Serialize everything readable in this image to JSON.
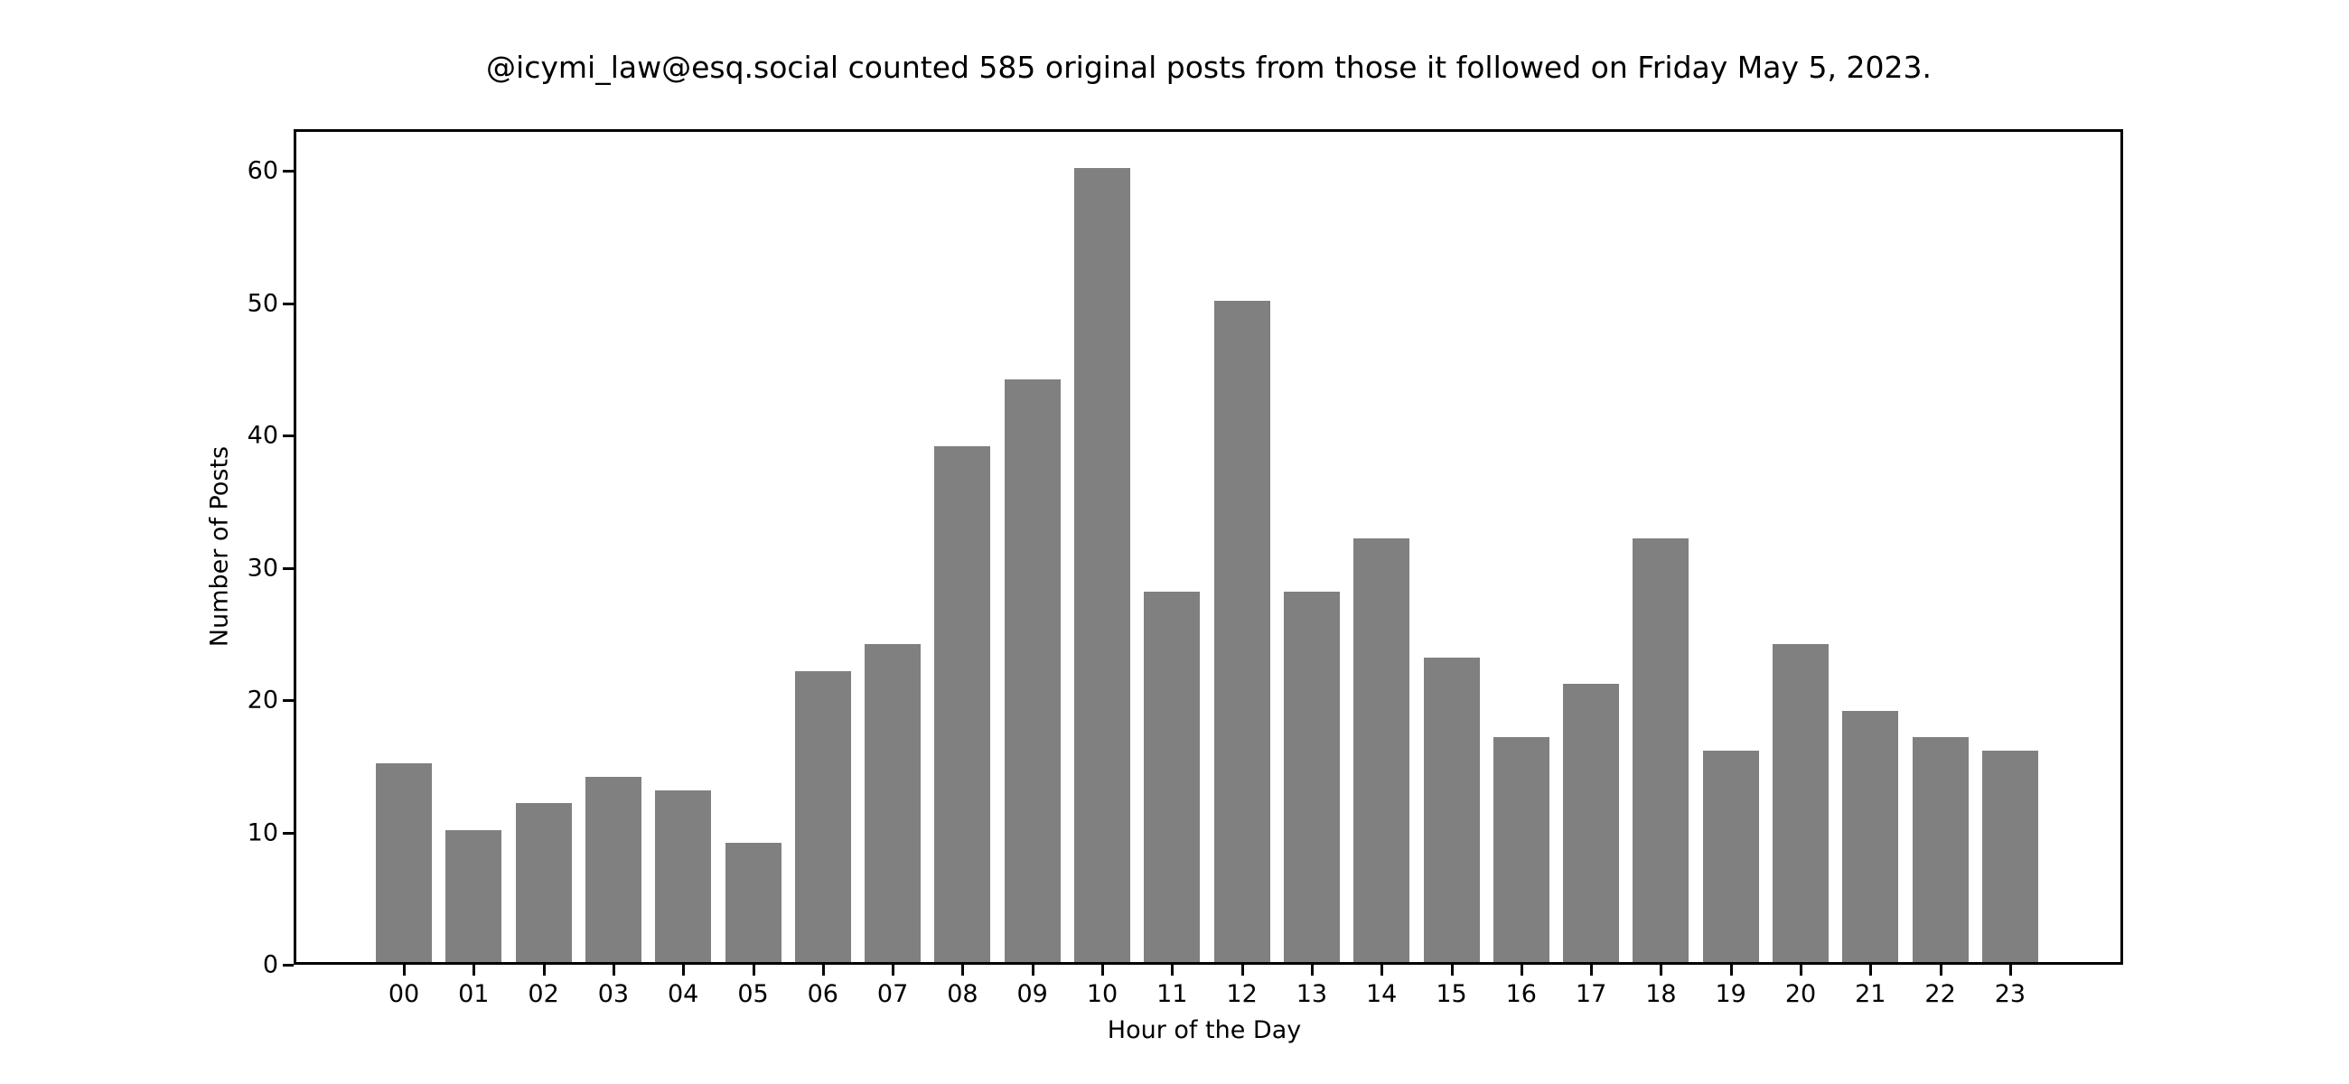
{
  "chart_data": {
    "type": "bar",
    "title": "@icymi_law@esq.social counted 585 original posts from those it followed on Friday May 5, 2023.",
    "xlabel": "Hour of the Day",
    "ylabel": "Number of Posts",
    "categories": [
      "00",
      "01",
      "02",
      "03",
      "04",
      "05",
      "06",
      "07",
      "08",
      "09",
      "10",
      "11",
      "12",
      "13",
      "14",
      "15",
      "16",
      "17",
      "18",
      "19",
      "20",
      "21",
      "22",
      "23"
    ],
    "values": [
      15,
      10,
      12,
      14,
      13,
      9,
      22,
      24,
      39,
      44,
      60,
      28,
      50,
      28,
      32,
      23,
      17,
      21,
      32,
      16,
      24,
      19,
      17,
      16
    ],
    "yticks": [
      "0",
      "10",
      "20",
      "30",
      "40",
      "50",
      "60"
    ],
    "ylim": [
      0,
      63
    ],
    "bar_color": "#808080",
    "grid": false,
    "legend": null
  }
}
